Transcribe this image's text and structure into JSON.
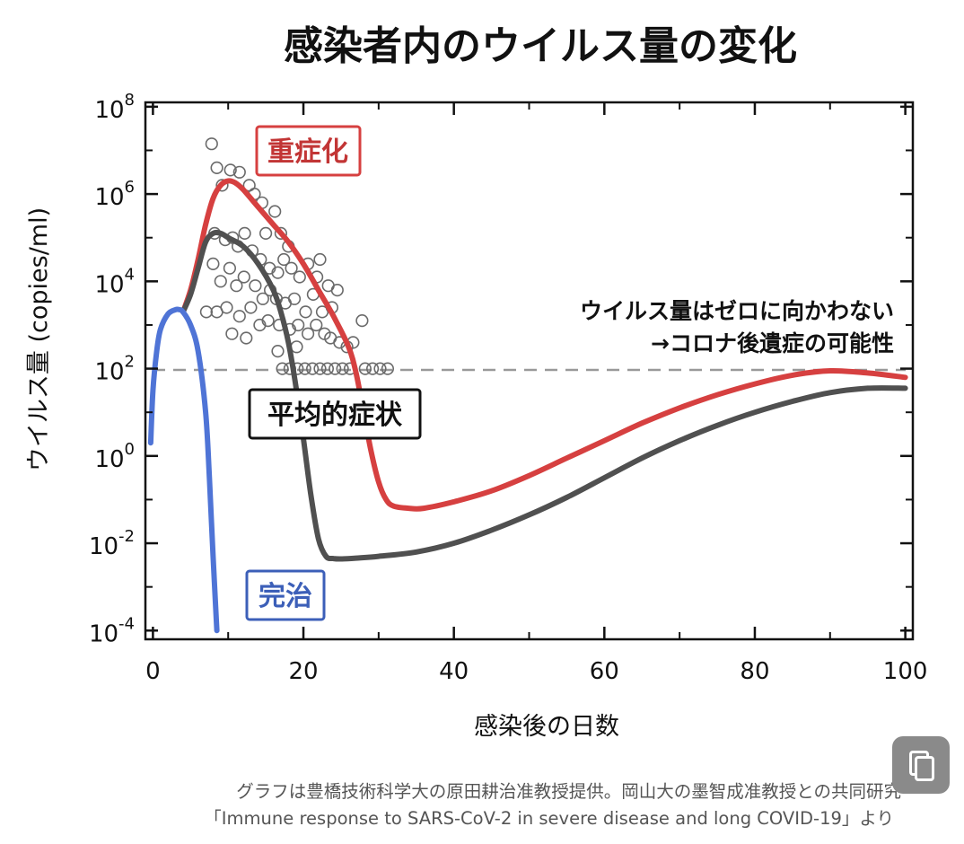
{
  "chart_data": {
    "type": "line",
    "title": "感染者内のウイルス量の変化",
    "xlabel": "感染後の日数",
    "ylabel": "ウイルス量 (copies/ml)",
    "xlim": [
      -1,
      101
    ],
    "ylim_log10": [
      -4.2,
      8.1
    ],
    "y_scale": "log",
    "x_ticks": [
      "0",
      "20",
      "40",
      "60",
      "80",
      "100"
    ],
    "x_tick_values": [
      0,
      20,
      40,
      60,
      80,
      100
    ],
    "y_tick_exponents": [
      8,
      6,
      4,
      2,
      0,
      -2,
      -4
    ],
    "y_tick_base": "10",
    "y_tick_exp_labels": [
      "8",
      "6",
      "4",
      "2",
      "0",
      "-2",
      "-4"
    ],
    "detection_limit_log10": 1.97,
    "series": [
      {
        "name": "重症化",
        "color": "#d64040",
        "x": [
          4,
          5,
          6,
          7,
          8,
          9,
          10,
          11,
          12,
          14,
          16,
          18,
          20,
          22,
          24,
          26,
          27,
          28,
          29,
          30,
          31,
          32,
          34,
          36,
          40,
          45,
          50,
          55,
          60,
          65,
          70,
          75,
          80,
          85,
          90,
          95,
          100
        ],
        "log10": [
          3.3,
          3.8,
          4.5,
          5.3,
          5.9,
          6.2,
          6.3,
          6.25,
          6.1,
          5.7,
          5.3,
          4.9,
          4.4,
          3.8,
          3.2,
          2.5,
          1.9,
          1.0,
          0.1,
          -0.6,
          -1.0,
          -1.15,
          -1.2,
          -1.2,
          -1.05,
          -0.8,
          -0.45,
          -0.05,
          0.35,
          0.75,
          1.1,
          1.4,
          1.65,
          1.85,
          1.95,
          1.9,
          1.8
        ]
      },
      {
        "name": "平均的症状",
        "color": "#505050",
        "x": [
          4,
          5,
          6,
          7,
          8,
          9,
          10,
          12,
          14,
          16,
          17,
          18,
          19,
          20,
          21,
          22,
          23,
          24,
          25,
          27,
          30,
          35,
          40,
          45,
          50,
          55,
          60,
          65,
          70,
          75,
          80,
          85,
          90,
          95,
          100
        ],
        "log10": [
          3.3,
          3.7,
          4.3,
          4.9,
          5.1,
          5.1,
          5.0,
          4.8,
          4.4,
          3.8,
          3.3,
          2.6,
          1.6,
          0.4,
          -0.9,
          -1.9,
          -2.3,
          -2.35,
          -2.36,
          -2.34,
          -2.3,
          -2.2,
          -2.0,
          -1.7,
          -1.35,
          -0.95,
          -0.5,
          -0.05,
          0.35,
          0.7,
          1.0,
          1.25,
          1.45,
          1.55,
          1.55
        ]
      },
      {
        "name": "完治",
        "color": "#4f74d6",
        "x": [
          -0.3,
          0,
          0.5,
          1,
          2,
          3,
          3.5,
          4,
          5,
          6,
          7,
          7.5,
          8,
          8.5
        ],
        "log10": [
          0.3,
          1.5,
          2.4,
          2.9,
          3.25,
          3.35,
          3.35,
          3.3,
          3.0,
          2.4,
          1.0,
          -0.5,
          -2.3,
          -4.0
        ]
      }
    ],
    "observations": [
      [
        7.8,
        7.15
      ],
      [
        8.5,
        6.6
      ],
      [
        9.2,
        6.2
      ],
      [
        10.3,
        6.55
      ],
      [
        11.5,
        6.5
      ],
      [
        12.8,
        6.2
      ],
      [
        13.5,
        6.0
      ],
      [
        14.5,
        5.8
      ],
      [
        16.2,
        5.6
      ],
      [
        15,
        5.1
      ],
      [
        17,
        5.1
      ],
      [
        18,
        4.8
      ],
      [
        8.2,
        5.1
      ],
      [
        9.6,
        4.95
      ],
      [
        10.6,
        5.0
      ],
      [
        11.3,
        4.8
      ],
      [
        12.2,
        5.1
      ],
      [
        13.2,
        4.7
      ],
      [
        14.3,
        4.5
      ],
      [
        15.5,
        4.3
      ],
      [
        16.6,
        4.2
      ],
      [
        17.4,
        4.5
      ],
      [
        18.4,
        4.3
      ],
      [
        19.5,
        4.1
      ],
      [
        20.6,
        4.4
      ],
      [
        21.8,
        4.1
      ],
      [
        22.2,
        4.5
      ],
      [
        23.3,
        3.9
      ],
      [
        24.5,
        3.8
      ],
      [
        8,
        4.4
      ],
      [
        9,
        4.0
      ],
      [
        10.2,
        4.3
      ],
      [
        11.1,
        3.9
      ],
      [
        12.1,
        4.1
      ],
      [
        13.6,
        3.9
      ],
      [
        14.6,
        3.6
      ],
      [
        15.6,
        3.8
      ],
      [
        16.4,
        3.6
      ],
      [
        17.6,
        3.5
      ],
      [
        18.8,
        3.6
      ],
      [
        20.3,
        3.3
      ],
      [
        21.3,
        3.7
      ],
      [
        22.5,
        3.3
      ],
      [
        23.8,
        3.4
      ],
      [
        7.1,
        3.3
      ],
      [
        8.5,
        3.3
      ],
      [
        9.8,
        3.4
      ],
      [
        11.5,
        3.2
      ],
      [
        13,
        3.4
      ],
      [
        14.2,
        3.0
      ],
      [
        15.3,
        3.1
      ],
      [
        16.8,
        3.0
      ],
      [
        18.2,
        2.9
      ],
      [
        19.3,
        3.0
      ],
      [
        20.6,
        2.8
      ],
      [
        21.7,
        3.0
      ],
      [
        22.8,
        2.8
      ],
      [
        23.6,
        2.7
      ],
      [
        24.8,
        2.6
      ],
      [
        25.8,
        2.5
      ],
      [
        26.6,
        2.6
      ],
      [
        27.8,
        3.1
      ],
      [
        10.5,
        2.8
      ],
      [
        12.4,
        2.7
      ],
      [
        16.6,
        2.4
      ],
      [
        19.1,
        2.5
      ],
      [
        17.2,
        2.0
      ],
      [
        18.2,
        2.0
      ],
      [
        19.2,
        2.0
      ],
      [
        20.2,
        2.0
      ],
      [
        21.2,
        2.0
      ],
      [
        22.2,
        2.0
      ],
      [
        23.2,
        2.0
      ],
      [
        24.2,
        2.0
      ],
      [
        25.2,
        2.0
      ],
      [
        26.2,
        2.0
      ],
      [
        28.2,
        2.0
      ],
      [
        29.2,
        2.0
      ],
      [
        30.2,
        2.0
      ],
      [
        31.2,
        2.0
      ]
    ]
  },
  "labels": {
    "severe": "重症化",
    "average": "平均的症状",
    "recovered": "完治",
    "annotation_line1": "ウイルス量はゼロに向かわない",
    "annotation_line2": "→コロナ後遺症の可能性"
  },
  "caption": {
    "line1": "グラフは豊橋技術科学大の原田耕治准教授提供。岡山大の墨智成准教授との共同研究",
    "line2": "「Immune response to SARS-CoV-2 in severe disease and long COVID-19」より"
  },
  "copy_button": {
    "icon": "copy-icon"
  }
}
